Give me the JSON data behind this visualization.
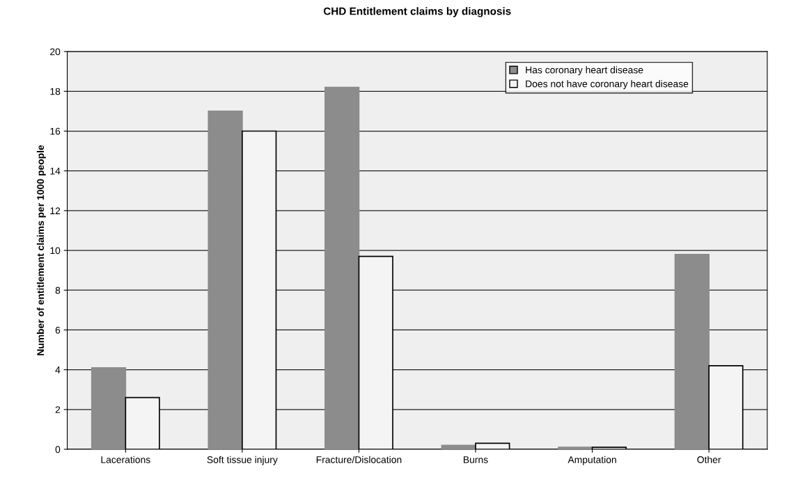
{
  "chart_data": {
    "type": "bar",
    "title": "CHD Entitlement claims by diagnosis",
    "ylabel": "Number of entitlement claims per 1000 people",
    "categories": [
      "Lacerations",
      "Soft tissue injury",
      "Fracture/Dislocation",
      "Burns",
      "Amputation",
      "Other"
    ],
    "series": [
      {
        "name": "Has coronary heart disease",
        "color": "#8c8c8c",
        "values": [
          4.1,
          17.0,
          18.2,
          0.2,
          0.1,
          9.8
        ]
      },
      {
        "name": "Does not have coronary heart disease",
        "color": "#f4f4f4",
        "values": [
          2.6,
          16.0,
          9.7,
          0.3,
          0.1,
          4.2
        ]
      }
    ],
    "ylim": [
      0,
      20
    ],
    "yticks": [
      0,
      2,
      4,
      6,
      8,
      10,
      12,
      14,
      16,
      18,
      20
    ],
    "grid": "y",
    "legend": "top right"
  }
}
